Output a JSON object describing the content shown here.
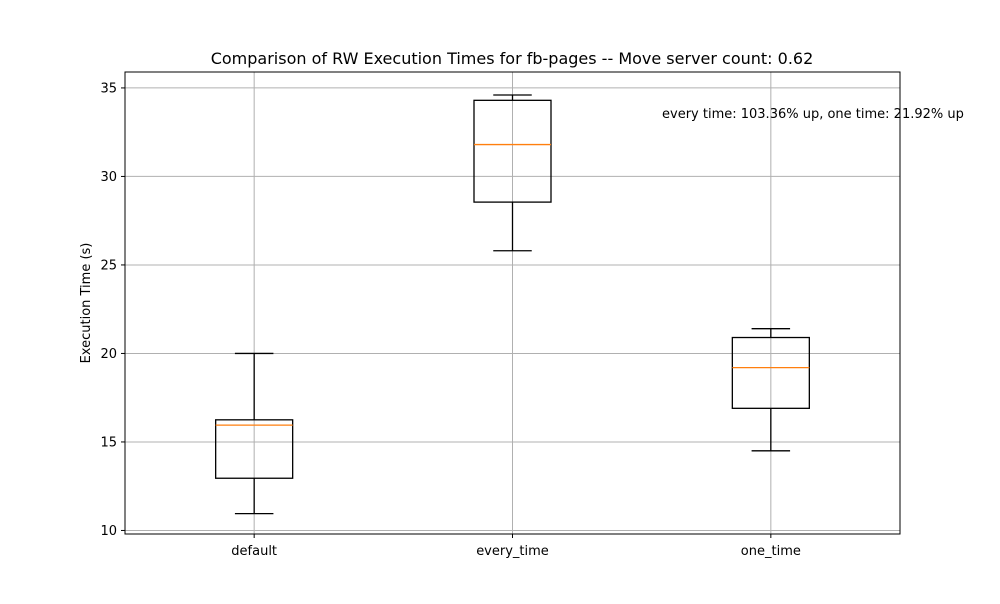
{
  "chart_data": {
    "type": "box",
    "title": "Comparison of RW Execution Times for fb-pages -- Move server count: 0.62",
    "xlabel": "",
    "ylabel": "Execution Time (s)",
    "categories": [
      "default",
      "every_time",
      "one_time"
    ],
    "boxes": [
      {
        "category": "default",
        "whisker_low": 10.95,
        "q1": 12.95,
        "median": 15.95,
        "q3": 16.25,
        "whisker_high": 20.0
      },
      {
        "category": "every_time",
        "whisker_low": 25.8,
        "q1": 28.55,
        "median": 31.8,
        "q3": 34.3,
        "whisker_high": 34.6
      },
      {
        "category": "one_time",
        "whisker_low": 14.5,
        "q1": 16.9,
        "median": 19.2,
        "q3": 20.9,
        "whisker_high": 21.4
      }
    ],
    "ylim": [
      9.8,
      35.9
    ],
    "yticks": [
      10,
      15,
      20,
      25,
      30,
      35
    ],
    "grid": true,
    "annotation": "every time: 103.36% up, one time: 21.92% up",
    "colors": {
      "box": "#000000",
      "median": "#ff7f0e",
      "grid": "#b0b0b0"
    }
  }
}
